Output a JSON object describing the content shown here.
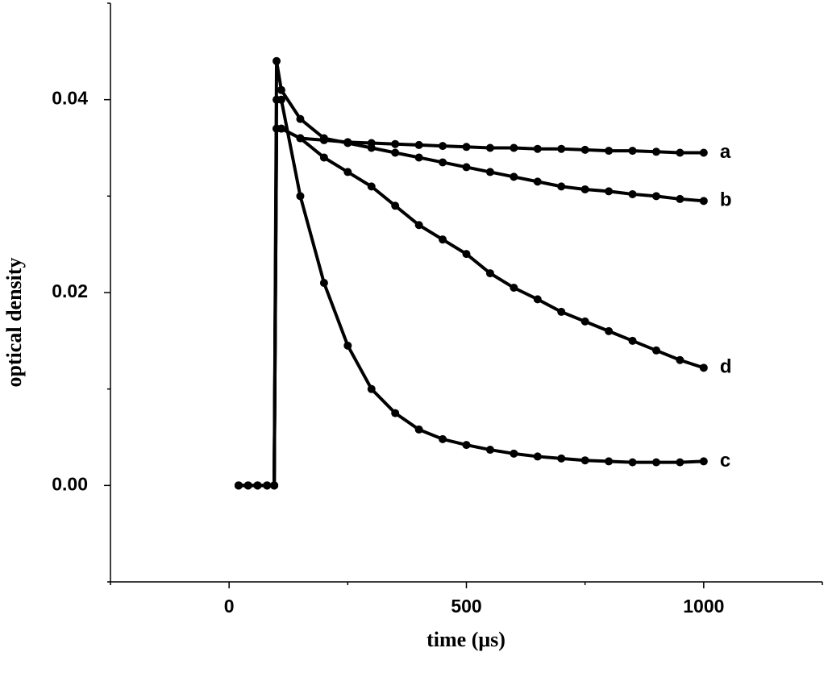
{
  "chart_data": {
    "type": "line",
    "xlabel": "time (μs)",
    "ylabel": "optical density",
    "xlim": [
      -250,
      1250
    ],
    "xticks": [
      0,
      500,
      1000
    ],
    "xminorticks": [
      -250,
      250,
      750,
      1250
    ],
    "ylim": [
      -0.01,
      0.05
    ],
    "yticks": [
      {
        "value": 0,
        "label": "0.00"
      },
      0.02,
      0.04
    ],
    "yminorticks": [
      -0.01,
      0.01,
      0.03,
      0.05
    ],
    "x": [
      20,
      40,
      60,
      80,
      95,
      100,
      110,
      150,
      200,
      250,
      300,
      350,
      400,
      450,
      500,
      550,
      600,
      650,
      700,
      750,
      800,
      850,
      900,
      950,
      1000
    ],
    "series": [
      {
        "name": "a",
        "color": "#000000",
        "values": [
          0,
          0,
          0,
          0,
          0,
          0.037,
          0.037,
          0.036,
          0.0358,
          0.0356,
          0.0355,
          0.0354,
          0.0353,
          0.0352,
          0.0351,
          0.035,
          0.035,
          0.0349,
          0.0349,
          0.0348,
          0.0347,
          0.0347,
          0.0346,
          0.0345,
          0.0345
        ]
      },
      {
        "name": "b",
        "color": "#000000",
        "values": [
          0,
          0,
          0,
          0,
          0,
          0.044,
          0.041,
          0.038,
          0.036,
          0.0355,
          0.035,
          0.0345,
          0.034,
          0.0335,
          0.033,
          0.0325,
          0.032,
          0.0315,
          0.031,
          0.0307,
          0.0305,
          0.0302,
          0.03,
          0.0297,
          0.0295
        ]
      },
      {
        "name": "c",
        "color": "#000000",
        "values": [
          0,
          0,
          0,
          0,
          0,
          0.04,
          0.04,
          0.03,
          0.021,
          0.0145,
          0.01,
          0.0075,
          0.0058,
          0.0048,
          0.0042,
          0.0037,
          0.0033,
          0.003,
          0.0028,
          0.0026,
          0.0025,
          0.0024,
          0.0024,
          0.0024,
          0.0025
        ]
      },
      {
        "name": "d",
        "color": "#000000",
        "values": [
          0,
          0,
          0,
          0,
          0,
          0.037,
          0.037,
          0.036,
          0.034,
          0.0325,
          0.031,
          0.029,
          0.027,
          0.0255,
          0.024,
          0.022,
          0.0205,
          0.0193,
          0.018,
          0.017,
          0.016,
          0.015,
          0.014,
          0.013,
          0.0122
        ]
      }
    ]
  }
}
